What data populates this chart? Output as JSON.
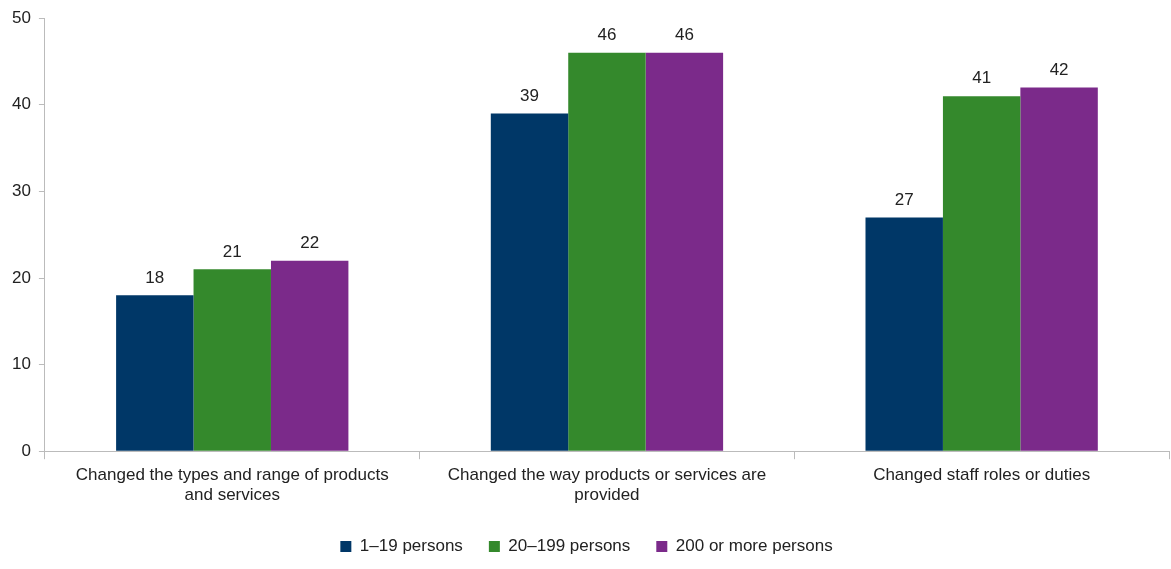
{
  "chart_data": {
    "type": "bar",
    "categories": [
      "Changed the types and range of products and services",
      "Changed the way products or services are provided",
      "Changed staff roles or duties"
    ],
    "series": [
      {
        "name": "1–19 persons",
        "color": "#003767",
        "values": [
          18,
          39,
          27
        ]
      },
      {
        "name": "20–199 persons",
        "color": "#34892c",
        "values": [
          21,
          46,
          41
        ]
      },
      {
        "name": "200 or more persons",
        "color": "#7b2a8a",
        "values": [
          22,
          46,
          42
        ]
      }
    ],
    "ylim": [
      0,
      50
    ],
    "yticks": [
      0,
      10,
      20,
      30,
      40,
      50
    ],
    "grid": false,
    "legend": "bottom",
    "data_labels": true
  }
}
